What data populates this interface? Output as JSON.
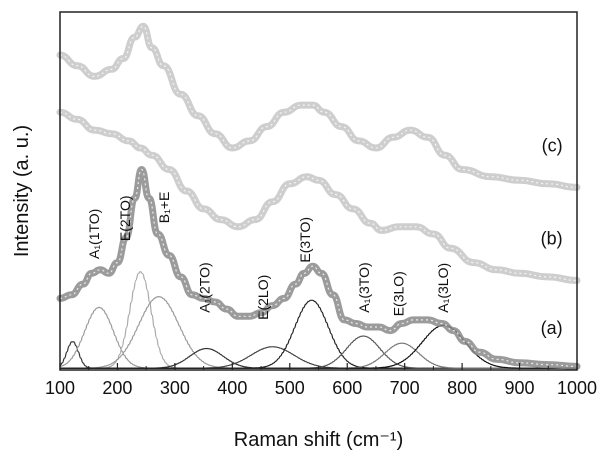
{
  "chart_data": {
    "type": "line",
    "title": "",
    "xlabel": "Raman shift (cm⁻¹)",
    "ylabel": "Intensity (a. u.)",
    "xlim": [
      100,
      1000
    ],
    "x_ticks": [
      100,
      200,
      300,
      400,
      500,
      600,
      700,
      800,
      900,
      1000
    ],
    "ylim": [
      0,
      1
    ],
    "grid": false,
    "legend": "none",
    "series": [
      {
        "name": "(c)",
        "color": "#c6c6c6",
        "x": [
          100,
          130,
          160,
          190,
          210,
          230,
          245,
          260,
          280,
          310,
          340,
          370,
          400,
          430,
          460,
          490,
          520,
          540,
          560,
          590,
          620,
          650,
          680,
          710,
          740,
          770,
          800,
          850,
          900,
          950,
          1000
        ],
        "y": [
          0.88,
          0.85,
          0.82,
          0.84,
          0.87,
          0.93,
          0.96,
          0.9,
          0.85,
          0.77,
          0.71,
          0.66,
          0.62,
          0.64,
          0.68,
          0.72,
          0.74,
          0.74,
          0.72,
          0.68,
          0.64,
          0.62,
          0.65,
          0.67,
          0.65,
          0.6,
          0.56,
          0.54,
          0.53,
          0.52,
          0.51
        ]
      },
      {
        "name": "(b)",
        "color": "#c6c6c6",
        "x": [
          100,
          130,
          160,
          190,
          220,
          240,
          260,
          290,
          320,
          350,
          380,
          410,
          440,
          470,
          500,
          530,
          550,
          580,
          610,
          640,
          660,
          690,
          720,
          750,
          780,
          820,
          860,
          900,
          950,
          1000
        ],
        "y": [
          0.72,
          0.7,
          0.67,
          0.66,
          0.64,
          0.62,
          0.6,
          0.56,
          0.5,
          0.45,
          0.42,
          0.4,
          0.42,
          0.47,
          0.52,
          0.54,
          0.53,
          0.49,
          0.45,
          0.41,
          0.39,
          0.4,
          0.4,
          0.38,
          0.34,
          0.3,
          0.28,
          0.27,
          0.26,
          0.25
        ]
      },
      {
        "name": "(a)",
        "color": "#8a8a8a",
        "x": [
          100,
          120,
          140,
          155,
          170,
          185,
          200,
          215,
          230,
          242,
          255,
          270,
          290,
          310,
          330,
          350,
          370,
          390,
          410,
          430,
          450,
          470,
          490,
          510,
          525,
          540,
          555,
          575,
          595,
          615,
          635,
          655,
          675,
          695,
          715,
          740,
          765,
          785,
          805,
          830,
          860,
          900,
          950,
          1000
        ],
        "y": [
          0.2,
          0.21,
          0.24,
          0.27,
          0.28,
          0.27,
          0.3,
          0.37,
          0.48,
          0.56,
          0.48,
          0.38,
          0.32,
          0.26,
          0.21,
          0.2,
          0.19,
          0.17,
          0.15,
          0.15,
          0.16,
          0.18,
          0.2,
          0.24,
          0.27,
          0.29,
          0.27,
          0.21,
          0.14,
          0.13,
          0.12,
          0.12,
          0.11,
          0.13,
          0.14,
          0.14,
          0.13,
          0.11,
          0.08,
          0.05,
          0.03,
          0.02,
          0.015,
          0.01
        ]
      }
    ],
    "peak_fits": [
      {
        "center": 122,
        "width": 12,
        "height": 0.075
      },
      {
        "center": 168,
        "width": 30,
        "height": 0.17
      },
      {
        "center": 240,
        "width": 22,
        "height": 0.27
      },
      {
        "center": 272,
        "width": 42,
        "height": 0.2
      },
      {
        "center": 355,
        "width": 35,
        "height": 0.055
      },
      {
        "center": 470,
        "width": 45,
        "height": 0.06
      },
      {
        "center": 538,
        "width": 35,
        "height": 0.19
      },
      {
        "center": 628,
        "width": 35,
        "height": 0.09
      },
      {
        "center": 695,
        "width": 35,
        "height": 0.07
      },
      {
        "center": 768,
        "width": 45,
        "height": 0.12
      }
    ],
    "peak_labels": [
      {
        "text": "A₁(1TO)",
        "x": 168,
        "y": 0.31
      },
      {
        "text": "E(2TO)",
        "x": 222,
        "y": 0.36
      },
      {
        "text": "B₁+E",
        "x": 290,
        "y": 0.41
      },
      {
        "text": "A₁(2TO)",
        "x": 360,
        "y": 0.16
      },
      {
        "text": "E(2LO)",
        "x": 462,
        "y": 0.14
      },
      {
        "text": "E(3TO)",
        "x": 535,
        "y": 0.3
      },
      {
        "text": "A₁(3TO)",
        "x": 638,
        "y": 0.16
      },
      {
        "text": "E(3LO)",
        "x": 698,
        "y": 0.15
      },
      {
        "text": "A₁(3LO)",
        "x": 775,
        "y": 0.16
      }
    ],
    "curve_labels": [
      {
        "text": "(c)",
        "x": 975,
        "y": 0.61
      },
      {
        "text": "(b)",
        "x": 975,
        "y": 0.35
      },
      {
        "text": "(a)",
        "x": 975,
        "y": 0.1
      }
    ]
  }
}
